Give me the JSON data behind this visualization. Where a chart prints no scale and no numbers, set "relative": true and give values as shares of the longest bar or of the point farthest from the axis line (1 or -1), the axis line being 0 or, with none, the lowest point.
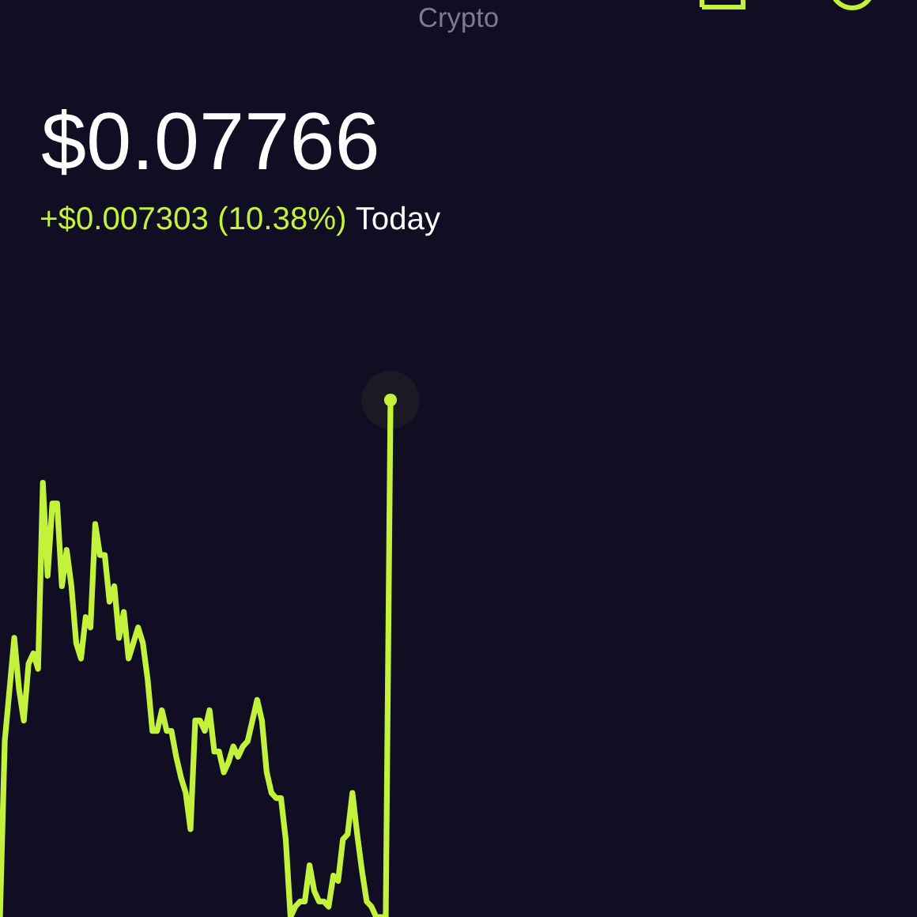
{
  "chart_data": {
    "type": "line",
    "title": "Crypto",
    "subtitle": "$0.07766",
    "annotations": [
      "+$0.007303 (10.38%)",
      "Today"
    ],
    "relative": true,
    "line_style": "solid",
    "categories": [
      null,
      null,
      null,
      null,
      null,
      null,
      null,
      null,
      null,
      null,
      null,
      null,
      null,
      null,
      null,
      null,
      null,
      null,
      null,
      null,
      null,
      null,
      null,
      null,
      null,
      null,
      null,
      null,
      null,
      null,
      null,
      null,
      null,
      null,
      null,
      null,
      null,
      null,
      null,
      null,
      null,
      null,
      null,
      null,
      null,
      null,
      null,
      null,
      null,
      null,
      null,
      null,
      null,
      null,
      null,
      null,
      null,
      null,
      null,
      null,
      null,
      null,
      null,
      null,
      null,
      null,
      null,
      null,
      null,
      null,
      null,
      null,
      null,
      null,
      null,
      null,
      null,
      null,
      null,
      null,
      null,
      null,
      null
    ],
    "series": [
      {
        "color": "#c3f23c",
        "values": [
          0,
          0.34,
          0.44,
          0.54,
          0.44,
          0.38,
          0.49,
          0.51,
          0.48,
          0.84,
          0.66,
          0.8,
          0.8,
          0.64,
          0.71,
          0.64,
          0.53,
          0.5,
          0.58,
          0.56,
          0.76,
          0.7,
          0.7,
          0.61,
          0.64,
          0.54,
          0.59,
          0.5,
          0.53,
          0.56,
          0.53,
          0.46,
          0.36,
          0.36,
          0.4,
          0.36,
          0.36,
          0.31,
          0.27,
          0.24,
          0.17,
          0.38,
          0.38,
          0.36,
          0.4,
          0.32,
          0.32,
          0.28,
          0.3,
          0.33,
          0.31,
          0.33,
          0.34,
          0.38,
          0.42,
          0.38,
          0.28,
          0.24,
          0.23,
          0.23,
          0.15,
          0,
          0.02,
          0.03,
          0.03,
          0.1,
          0.05,
          0.03,
          0.03,
          0.02,
          0.08,
          0.07,
          0.15,
          0.16,
          0.24,
          0.16,
          0.09,
          0.03,
          0.02,
          0,
          0,
          0,
          1
        ]
      }
    ]
  }
}
